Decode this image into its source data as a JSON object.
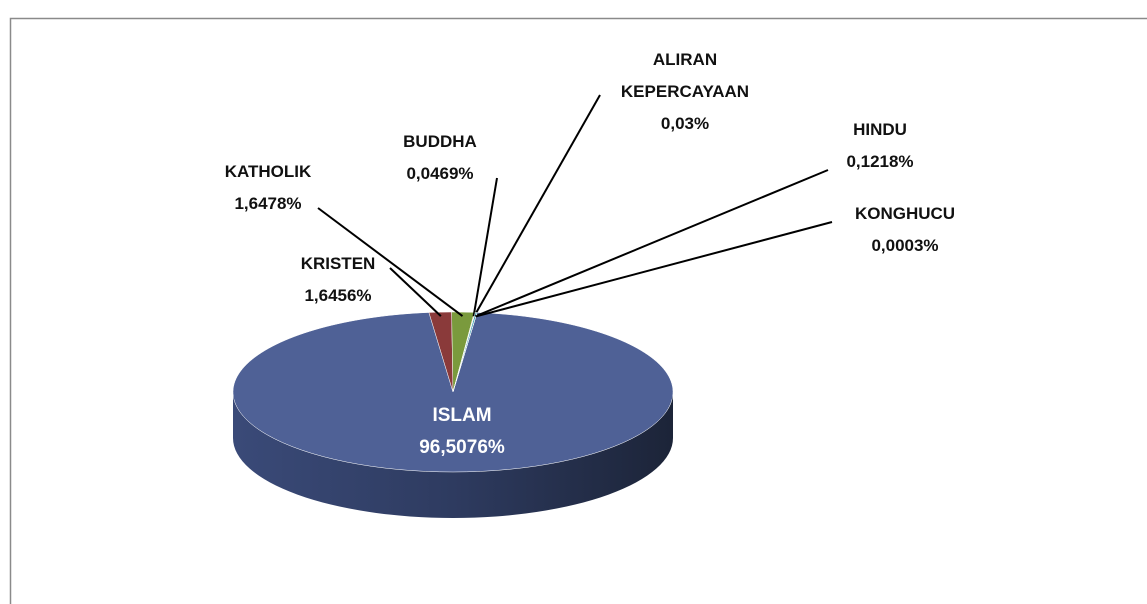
{
  "chart_data": {
    "type": "pie",
    "categories": [
      "ISLAM",
      "KRISTEN",
      "KATHOLIK",
      "BUDDHA",
      "ALIRAN KEPERCAYAAN",
      "HINDU",
      "KONGHUCU"
    ],
    "values": [
      96.5076,
      1.6456,
      1.6478,
      0.0469,
      0.03,
      0.1218,
      0.0003
    ],
    "value_labels": [
      "96,5076%",
      "1,6456%",
      "1,6478%",
      "0,0469%",
      "0,03%",
      "0,1218%",
      "0,0003%"
    ],
    "colors": [
      "#4f6196",
      "#8a3a3a",
      "#7a9a3d",
      "#e0822a",
      "#9aa6c8",
      "#3fa0b5",
      "#6b4f91"
    ]
  }
}
